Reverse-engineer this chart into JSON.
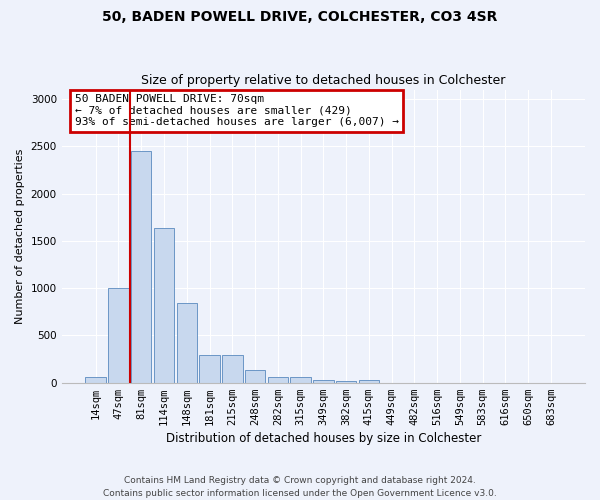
{
  "title1": "50, BADEN POWELL DRIVE, COLCHESTER, CO3 4SR",
  "title2": "Size of property relative to detached houses in Colchester",
  "xlabel": "Distribution of detached houses by size in Colchester",
  "ylabel": "Number of detached properties",
  "annotation_line1": "50 BADEN POWELL DRIVE: 70sqm",
  "annotation_line2": "← 7% of detached houses are smaller (429)",
  "annotation_line3": "93% of semi-detached houses are larger (6,007) →",
  "footer1": "Contains HM Land Registry data © Crown copyright and database right 2024.",
  "footer2": "Contains public sector information licensed under the Open Government Licence v3.0.",
  "categories": [
    "14sqm",
    "47sqm",
    "81sqm",
    "114sqm",
    "148sqm",
    "181sqm",
    "215sqm",
    "248sqm",
    "282sqm",
    "315sqm",
    "349sqm",
    "382sqm",
    "415sqm",
    "449sqm",
    "482sqm",
    "516sqm",
    "549sqm",
    "583sqm",
    "616sqm",
    "650sqm",
    "683sqm"
  ],
  "values": [
    60,
    1000,
    2450,
    1640,
    840,
    290,
    290,
    130,
    55,
    55,
    30,
    20,
    30,
    0,
    0,
    0,
    0,
    0,
    0,
    0,
    0
  ],
  "bar_color": "#c8d8ee",
  "bar_edge_color": "#5a8abf",
  "red_line_color": "#cc0000",
  "annotation_box_color": "#cc0000",
  "ylim": [
    0,
    3100
  ],
  "yticks": [
    0,
    500,
    1000,
    1500,
    2000,
    2500,
    3000
  ],
  "background_color": "#eef2fb",
  "grid_color": "#ffffff",
  "title1_fontsize": 10,
  "title2_fontsize": 9,
  "xlabel_fontsize": 8.5,
  "ylabel_fontsize": 8,
  "tick_fontsize": 7.5,
  "annotation_fontsize": 8,
  "footer_fontsize": 6.5
}
